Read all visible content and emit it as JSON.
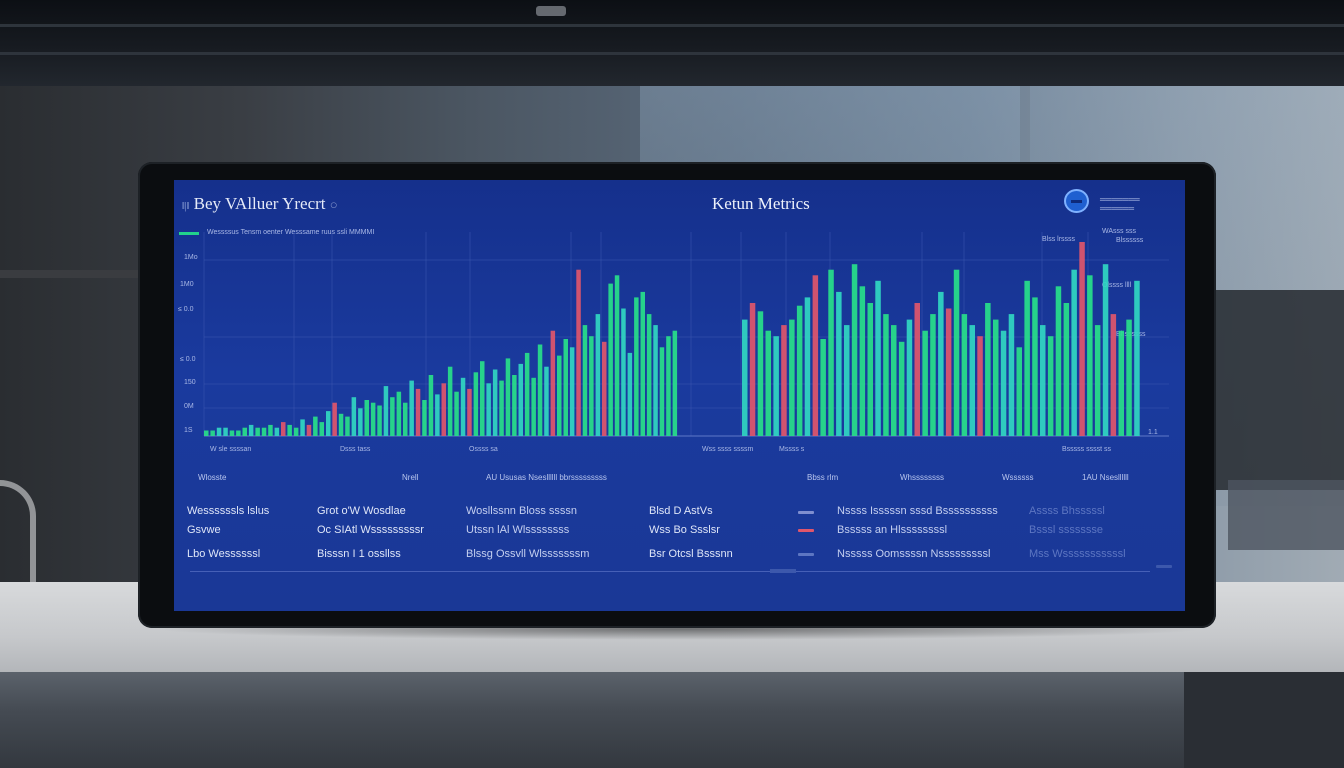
{
  "screen": {
    "app_title": "Bey VAlluer Yrecrt",
    "app_title_prefix": "‖|‖",
    "app_title_suffix": "○",
    "center_title": "Ketun Metrics",
    "logo_text": "═══════",
    "logo_text_2": "══════"
  },
  "chart": {
    "header_line": "Wessssus Tensm  oenter  Wesssame  ruus  ssli  MMMMI",
    "y_ticks": [
      "1Mo",
      "1M0",
      "≤ 0.0",
      "≤ 0.0",
      "150",
      "0M",
      "1S"
    ],
    "right_labels": [
      "Blss lrssss",
      "WAsss sss",
      "Blssssss",
      "Olssss llll",
      "Bhssssss"
    ],
    "right_tail": "1.1",
    "x_labels": [
      "W sle ssssan",
      "Dsss tass",
      "Ossss sa",
      "Wss ssss  ssssm",
      "Mssss s"
    ],
    "x_label_right": "Bsssss sssst ss",
    "colors": {
      "green": "#28e08a",
      "teal": "#31d7c2",
      "red": "#e0566b",
      "grid": "#3a55b0",
      "axis": "#5f78c8"
    }
  },
  "chart_data": {
    "type": "bar",
    "title": "Ketun Metrics",
    "xlabel": "",
    "ylabel": "",
    "grid": true,
    "series": [
      {
        "values": [
          2,
          2,
          3,
          3,
          2,
          2,
          3,
          4,
          3,
          3,
          4,
          3,
          5,
          4,
          3,
          6,
          4,
          7,
          5,
          9,
          12,
          8,
          7,
          14,
          10,
          13,
          12,
          11,
          18,
          14,
          16,
          12,
          20,
          17,
          13,
          22,
          15,
          19,
          25,
          16,
          21,
          17,
          23,
          27,
          19,
          24,
          20,
          28,
          22,
          26,
          30,
          21,
          33,
          25,
          38,
          29,
          35,
          32,
          60,
          40,
          36,
          44,
          34,
          55,
          58,
          46,
          30,
          50,
          52,
          44,
          40,
          32,
          36,
          38,
          42,
          48,
          45,
          38,
          36,
          40,
          42,
          47,
          50,
          58,
          35,
          60,
          52,
          40,
          62,
          54,
          48,
          56,
          44,
          40,
          34,
          42,
          48,
          38,
          44,
          52,
          46,
          60,
          44,
          40,
          36,
          48,
          42,
          38,
          44,
          32,
          56,
          50,
          40,
          36,
          54,
          48,
          60,
          70,
          58,
          40,
          62,
          44,
          38,
          42,
          56
        ],
        "colors_pattern": "mixed green / teal / red"
      }
    ]
  },
  "table": {
    "headers": [
      "Wlosste",
      "Nrell",
      "AU Ususas Nsesllllll bbrsssssssss",
      "Bbss rlm",
      "Whssssssss",
      "Wssssss",
      "1AU Nsesllllll"
    ],
    "rows": [
      [
        "Wessssssls lslus",
        "Grot  o'W  Wosdlae",
        "Wosllssnn Bloss ssssn",
        "Blsd  D  AstVs",
        "Nssss Isssssn sssd Bssssssssss",
        "Assss Bhsssssl"
      ],
      [
        "Gsvwe",
        "Oc  SIAtl Wsssssssssr",
        "Utssn  lAl  Wlssssssss",
        "Wss  Bo  Ssslsr",
        "Bsssss an Hlssssssssl",
        "Bsssl ssssssse"
      ],
      [
        "Lbo Wessssssl",
        "Bisssn I 1  ossllss",
        "Blssg  Ossvll Wlsssssssm",
        "Bsr  Otcsl  Bsssnn",
        "Nsssss Oomssssn Nsssssssssl",
        "Mss  Wsssssssssssl"
      ]
    ]
  }
}
